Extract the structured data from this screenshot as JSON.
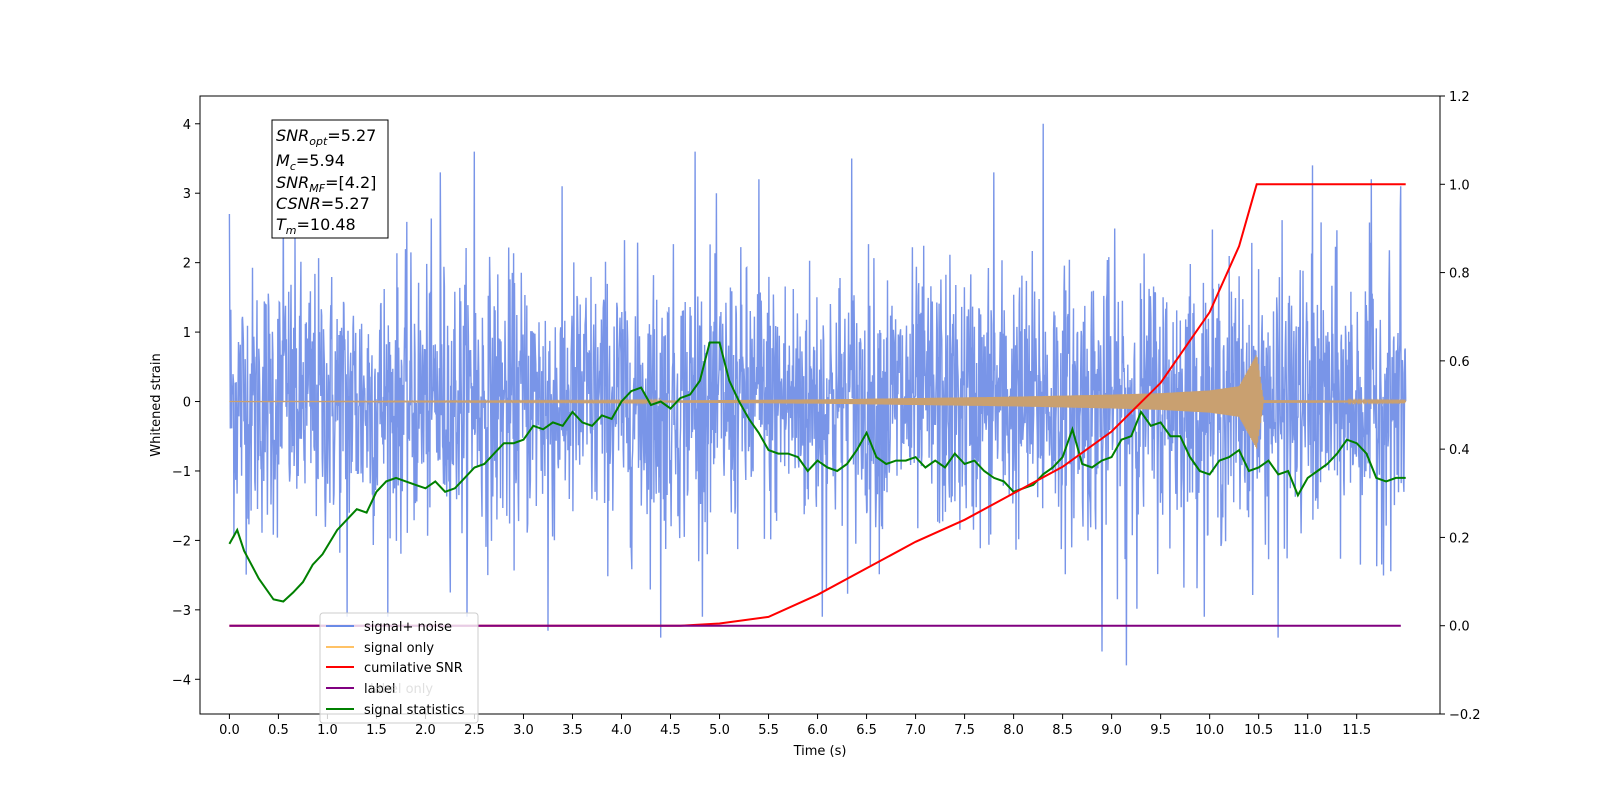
{
  "chart_data": {
    "type": "line",
    "xlabel": "Time (s)",
    "ylabel": "Whitened strain",
    "x_ticks": [
      "0.0",
      "0.5",
      "1.0",
      "1.5",
      "2.0",
      "2.5",
      "3.0",
      "3.5",
      "4.0",
      "4.5",
      "5.0",
      "5.5",
      "6.0",
      "6.5",
      "7.0",
      "7.5",
      "8.0",
      "8.5",
      "9.0",
      "9.5",
      "10.0",
      "10.5",
      "11.0",
      "11.5"
    ],
    "y_left_ticks": [
      "−4",
      "−3",
      "−2",
      "−1",
      "0",
      "1",
      "2",
      "3",
      "4"
    ],
    "y_right_ticks": [
      "−0.2",
      "0.0",
      "0.2",
      "0.4",
      "0.6",
      "0.8",
      "1.0",
      "1.2"
    ],
    "xlim": [
      -0.3,
      12.35
    ],
    "ylim_left": [
      -4.5,
      4.4
    ],
    "ylim_right": [
      -0.2,
      1.2
    ],
    "grid": false,
    "legend_placement": "lower-left",
    "stats_box": {
      "snr_opt": "=5.27",
      "mc": "=5.94",
      "snr_mf": "=[4.2]",
      "csnr": "=5.27",
      "tm": "=10.48"
    },
    "series": [
      {
        "name": "signal+ noise",
        "color": "#6a8ae6",
        "axis": "left",
        "description_range": [
          -4.1,
          4.05
        ],
        "peaks_x": [
          0.0,
          0.55,
          1.2,
          2.15,
          2.5,
          3.25,
          4.4,
          4.75,
          5.4,
          6.05,
          6.35,
          7.8,
          8.3,
          8.9,
          9.15,
          10.7,
          11.05,
          11.65,
          11.95
        ],
        "peaks_y": [
          2.7,
          2.9,
          -3.1,
          3.3,
          3.6,
          -3.3,
          -3.4,
          3.6,
          3.2,
          -3.1,
          3.5,
          3.3,
          4.0,
          -3.6,
          -3.8,
          -3.4,
          3.4,
          3.2,
          3.1
        ]
      },
      {
        "name": "signal only",
        "color": "#ffc266",
        "axis": "left",
        "x": [
          0.0,
          4.0,
          5.0,
          6.0,
          7.0,
          8.0,
          9.0,
          9.5,
          10.0,
          10.3,
          10.48,
          10.55,
          12.0
        ],
        "amplitude": [
          0.0,
          0.01,
          0.02,
          0.03,
          0.05,
          0.07,
          0.1,
          0.12,
          0.16,
          0.22,
          0.68,
          0.02,
          0.01
        ]
      },
      {
        "name": "cumilative SNR",
        "color": "#ff0000",
        "axis": "right",
        "x": [
          0.0,
          4.6,
          5.0,
          5.5,
          6.0,
          6.5,
          7.0,
          7.5,
          8.0,
          8.5,
          9.0,
          9.5,
          10.0,
          10.3,
          10.48,
          12.0
        ],
        "y": [
          0.0,
          0.0,
          0.005,
          0.02,
          0.07,
          0.13,
          0.19,
          0.24,
          0.3,
          0.36,
          0.44,
          0.55,
          0.71,
          0.86,
          1.0,
          1.0
        ]
      },
      {
        "name": "label",
        "color": "#800080",
        "axis": "right",
        "x": [
          0.0,
          11.95
        ],
        "y": [
          0.0,
          0.0
        ]
      },
      {
        "name": "label only",
        "color": "#bbbbbb",
        "axis": "right",
        "x": [],
        "y": []
      },
      {
        "name": "signal statistics",
        "color": "#008000",
        "axis": "left",
        "x": [
          0.0,
          0.08,
          0.15,
          0.3,
          0.45,
          0.55,
          0.65,
          0.75,
          0.85,
          0.95,
          1.1,
          1.2,
          1.3,
          1.4,
          1.5,
          1.6,
          1.7,
          1.8,
          1.9,
          2.0,
          2.1,
          2.2,
          2.3,
          2.4,
          2.5,
          2.6,
          2.7,
          2.8,
          2.9,
          3.0,
          3.1,
          3.2,
          3.3,
          3.4,
          3.5,
          3.6,
          3.7,
          3.8,
          3.9,
          4.0,
          4.1,
          4.2,
          4.3,
          4.4,
          4.5,
          4.6,
          4.7,
          4.8,
          4.9,
          5.0,
          5.1,
          5.2,
          5.3,
          5.4,
          5.5,
          5.6,
          5.7,
          5.8,
          5.9,
          6.0,
          6.1,
          6.2,
          6.3,
          6.4,
          6.5,
          6.6,
          6.7,
          6.8,
          6.9,
          7.0,
          7.1,
          7.2,
          7.3,
          7.4,
          7.5,
          7.6,
          7.7,
          7.8,
          7.9,
          8.0,
          8.1,
          8.2,
          8.3,
          8.4,
          8.5,
          8.6,
          8.7,
          8.8,
          8.9,
          9.0,
          9.1,
          9.2,
          9.3,
          9.4,
          9.5,
          9.6,
          9.7,
          9.8,
          9.9,
          10.0,
          10.1,
          10.2,
          10.3,
          10.4,
          10.5,
          10.6,
          10.7,
          10.8,
          10.9,
          11.0,
          11.1,
          11.2,
          11.3,
          11.4,
          11.5,
          11.6,
          11.7,
          11.8,
          11.9,
          12.0
        ],
        "y": [
          -2.05,
          -1.85,
          -2.15,
          -2.55,
          -2.85,
          -2.88,
          -2.75,
          -2.6,
          -2.35,
          -2.2,
          -1.85,
          -1.7,
          -1.55,
          -1.6,
          -1.3,
          -1.15,
          -1.1,
          -1.15,
          -1.2,
          -1.25,
          -1.15,
          -1.3,
          -1.25,
          -1.1,
          -0.95,
          -0.9,
          -0.75,
          -0.6,
          -0.6,
          -0.55,
          -0.35,
          -0.4,
          -0.3,
          -0.35,
          -0.15,
          -0.3,
          -0.35,
          -0.2,
          -0.25,
          0.0,
          0.15,
          0.2,
          -0.05,
          0.0,
          -0.1,
          0.05,
          0.1,
          0.3,
          0.85,
          0.85,
          0.3,
          0.0,
          -0.25,
          -0.45,
          -0.7,
          -0.75,
          -0.75,
          -0.8,
          -1.0,
          -0.85,
          -0.95,
          -1.0,
          -0.9,
          -0.7,
          -0.45,
          -0.8,
          -0.9,
          -0.85,
          -0.85,
          -0.8,
          -0.95,
          -0.85,
          -0.95,
          -0.75,
          -0.9,
          -0.85,
          -1.0,
          -1.1,
          -1.15,
          -1.3,
          -1.25,
          -1.2,
          -1.05,
          -0.95,
          -0.8,
          -0.4,
          -0.9,
          -0.95,
          -0.85,
          -0.8,
          -0.55,
          -0.5,
          -0.15,
          -0.35,
          -0.3,
          -0.5,
          -0.5,
          -0.8,
          -1.0,
          -1.05,
          -0.85,
          -0.8,
          -0.7,
          -1.0,
          -0.95,
          -0.85,
          -1.05,
          -1.0,
          -1.35,
          -1.1,
          -1.0,
          -0.9,
          -0.75,
          -0.55,
          -0.6,
          -0.75,
          -1.1,
          -1.15,
          -1.1,
          -1.1
        ]
      }
    ]
  }
}
